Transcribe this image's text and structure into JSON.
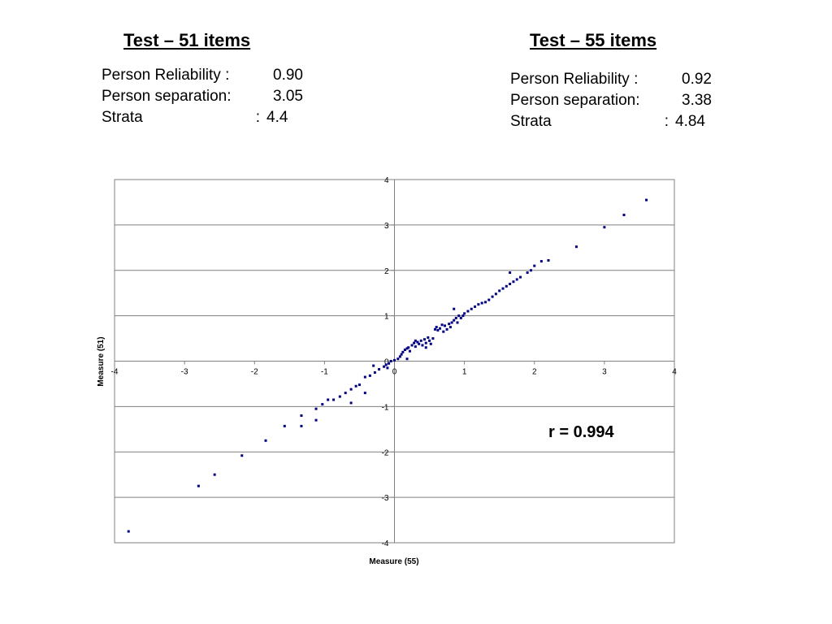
{
  "left_block": {
    "title": "Test – 51 items",
    "rows": [
      {
        "label": "Person Reliability",
        "sep": ":",
        "value": "0.90"
      },
      {
        "label": "Person separation",
        "sep": ":",
        "value": "3.05"
      },
      {
        "label": "Strata",
        "sep": ":",
        "value": "4.4"
      }
    ]
  },
  "right_block": {
    "title": "Test – 55 items",
    "rows": [
      {
        "label": "Person Reliability",
        "sep": ":",
        "value": "0.92"
      },
      {
        "label": "Person separation",
        "sep": ":",
        "value": "3.38"
      },
      {
        "label": "Strata",
        "sep": ":",
        "value": "4.84"
      }
    ]
  },
  "correlation_label": "r = 0.994",
  "chart_data": {
    "type": "scatter",
    "xlabel": "Measure (55)",
    "ylabel": "Measure (51)",
    "xlim": [
      -4,
      4
    ],
    "ylim": [
      -4,
      4
    ],
    "xticks": [
      "-4",
      "-3",
      "-2",
      "-1",
      "0",
      "1",
      "2",
      "3",
      "4"
    ],
    "yticks": [
      "4",
      "3",
      "2",
      "1",
      "0",
      "-1",
      "-2",
      "-3",
      "-4"
    ],
    "grid": "horizontal",
    "marker_color": "#000080",
    "series": [
      {
        "points": [
          [
            -3.8,
            -3.75
          ],
          [
            -2.8,
            -2.75
          ],
          [
            -2.57,
            -2.5
          ],
          [
            -2.18,
            -2.08
          ],
          [
            -1.84,
            -1.75
          ],
          [
            -1.57,
            -1.43
          ],
          [
            -1.33,
            -1.43
          ],
          [
            -1.33,
            -1.2
          ],
          [
            -1.12,
            -1.3
          ],
          [
            -1.12,
            -1.05
          ],
          [
            -1.03,
            -0.95
          ],
          [
            -0.95,
            -0.85
          ],
          [
            -0.87,
            -0.85
          ],
          [
            -0.78,
            -0.78
          ],
          [
            -0.7,
            -0.7
          ],
          [
            -0.62,
            -0.62
          ],
          [
            -0.55,
            -0.55
          ],
          [
            -0.5,
            -0.52
          ],
          [
            -0.42,
            -0.35
          ],
          [
            -0.35,
            -0.32
          ],
          [
            -0.28,
            -0.25
          ],
          [
            -0.22,
            -0.18
          ],
          [
            -0.15,
            -0.12
          ],
          [
            -0.12,
            -0.08
          ],
          [
            -0.08,
            -0.05
          ],
          [
            -0.05,
            0.0
          ],
          [
            0.0,
            0.02
          ],
          [
            0.05,
            0.05
          ],
          [
            0.08,
            0.1
          ],
          [
            0.1,
            0.15
          ],
          [
            0.12,
            0.2
          ],
          [
            0.15,
            0.25
          ],
          [
            0.18,
            0.28
          ],
          [
            0.2,
            0.3
          ],
          [
            0.22,
            0.22
          ],
          [
            0.25,
            0.35
          ],
          [
            0.28,
            0.4
          ],
          [
            0.3,
            0.32
          ],
          [
            0.33,
            0.42
          ],
          [
            0.35,
            0.38
          ],
          [
            0.38,
            0.45
          ],
          [
            0.4,
            0.35
          ],
          [
            0.43,
            0.48
          ],
          [
            0.45,
            0.4
          ],
          [
            0.48,
            0.52
          ],
          [
            0.5,
            0.45
          ],
          [
            0.52,
            0.38
          ],
          [
            0.55,
            0.5
          ],
          [
            0.58,
            0.7
          ],
          [
            0.6,
            0.75
          ],
          [
            0.62,
            0.68
          ],
          [
            0.65,
            0.72
          ],
          [
            0.68,
            0.8
          ],
          [
            0.7,
            0.65
          ],
          [
            0.72,
            0.78
          ],
          [
            0.75,
            0.7
          ],
          [
            0.78,
            0.82
          ],
          [
            0.8,
            0.75
          ],
          [
            0.82,
            0.85
          ],
          [
            0.85,
            0.9
          ],
          [
            0.88,
            0.95
          ],
          [
            0.9,
            0.85
          ],
          [
            0.92,
            1.0
          ],
          [
            0.95,
            0.95
          ],
          [
            0.98,
            1.0
          ],
          [
            1.0,
            1.05
          ],
          [
            1.05,
            1.1
          ],
          [
            1.1,
            1.15
          ],
          [
            1.15,
            1.2
          ],
          [
            1.2,
            1.25
          ],
          [
            1.25,
            1.28
          ],
          [
            1.3,
            1.3
          ],
          [
            1.35,
            1.35
          ],
          [
            1.4,
            1.42
          ],
          [
            1.45,
            1.48
          ],
          [
            1.5,
            1.55
          ],
          [
            1.55,
            1.6
          ],
          [
            1.6,
            1.65
          ],
          [
            1.65,
            1.7
          ],
          [
            1.7,
            1.75
          ],
          [
            1.75,
            1.8
          ],
          [
            1.8,
            1.85
          ],
          [
            1.9,
            1.95
          ],
          [
            1.95,
            2.0
          ],
          [
            2.0,
            2.1
          ],
          [
            2.1,
            2.2
          ],
          [
            2.2,
            2.22
          ],
          [
            2.6,
            2.52
          ],
          [
            3.0,
            2.95
          ],
          [
            3.28,
            3.22
          ],
          [
            3.6,
            3.55
          ],
          [
            0.85,
            1.15
          ],
          [
            1.65,
            1.95
          ],
          [
            -0.62,
            -0.92
          ],
          [
            -0.42,
            -0.7
          ],
          [
            -0.1,
            -0.15
          ],
          [
            0.3,
            0.45
          ],
          [
            0.45,
            0.3
          ],
          [
            -0.3,
            -0.1
          ],
          [
            0.18,
            0.05
          ]
        ]
      }
    ]
  }
}
